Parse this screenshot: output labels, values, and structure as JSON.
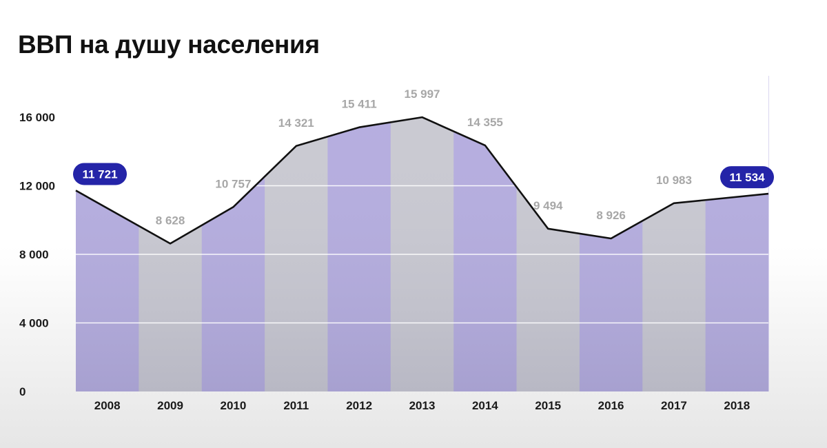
{
  "title": "ВВП на душу населения",
  "chart_data": {
    "type": "line",
    "title": "ВВП на душу населения",
    "xlabel": "",
    "ylabel": "",
    "categories": [
      "2008",
      "2009",
      "2010",
      "2011",
      "2012",
      "2013",
      "2014",
      "2015",
      "2016",
      "2017",
      "2018"
    ],
    "series": [
      {
        "values": [
          11721,
          8628,
          10757,
          14321,
          15411,
          15997,
          14355,
          9494,
          8926,
          10983,
          11534
        ]
      }
    ],
    "value_labels": [
      "11 721",
      "8 628",
      "10 757",
      "14 321",
      "15 411",
      "15 997",
      "14 355",
      "9 494",
      "8 926",
      "10 983",
      "11 534"
    ],
    "highlighted": [
      "2008",
      "2018"
    ],
    "yticks": [
      0,
      4000,
      8000,
      12000,
      16000
    ],
    "ytick_labels": [
      "0",
      "4 000",
      "8 000",
      "12 000",
      "16 000"
    ],
    "ylim": [
      0,
      16500
    ],
    "grid": true,
    "colors": {
      "band_purple": "#b4acdf",
      "band_gray": "#c9c9d1",
      "line": "#111111",
      "highlight": "#2424a8",
      "label": "#a7a7a7"
    }
  }
}
